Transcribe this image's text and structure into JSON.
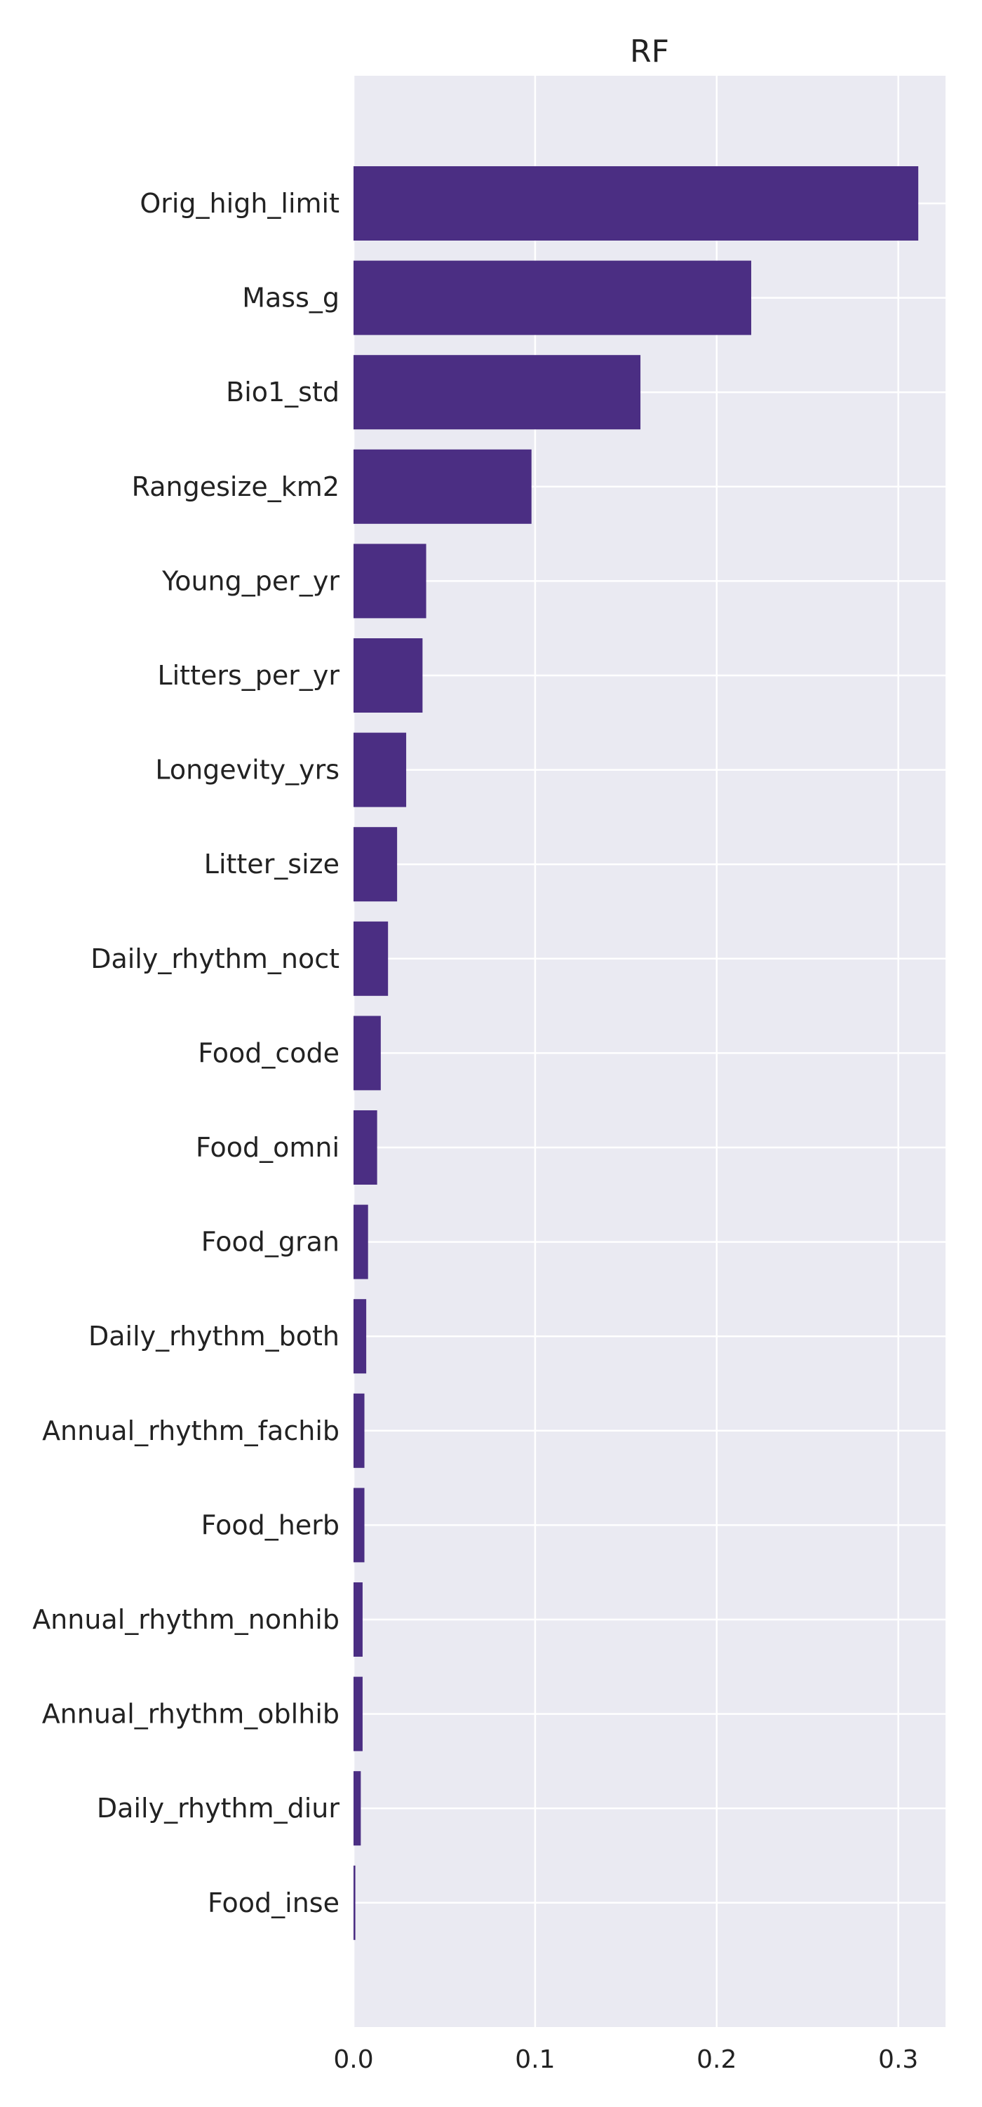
{
  "chart_data": {
    "type": "bar",
    "orientation": "horizontal",
    "title": "RF",
    "xlabel": "",
    "ylabel": "",
    "categories": [
      "Orig_high_limit",
      "Mass_g",
      "Bio1_std",
      "Rangesize_km2",
      "Young_per_yr",
      "Litters_per_yr",
      "Longevity_yrs",
      "Litter_size",
      "Daily_rhythm_noct",
      "Food_code",
      "Food_omni",
      "Food_gran",
      "Daily_rhythm_both",
      "Annual_rhythm_fachib",
      "Food_herb",
      "Annual_rhythm_nonhib",
      "Annual_rhythm_oblhib",
      "Daily_rhythm_diur",
      "Food_inse"
    ],
    "values": [
      0.311,
      0.219,
      0.158,
      0.098,
      0.04,
      0.038,
      0.029,
      0.024,
      0.019,
      0.015,
      0.013,
      0.008,
      0.007,
      0.006,
      0.006,
      0.005,
      0.005,
      0.004,
      0.001
    ],
    "xlim": [
      0,
      0.326
    ],
    "xticks": [
      {
        "value": 0.0,
        "label": "0.0"
      },
      {
        "value": 0.1,
        "label": "0.1"
      },
      {
        "value": 0.2,
        "label": "0.2"
      },
      {
        "value": 0.3,
        "label": "0.3"
      }
    ],
    "grid": true,
    "legend": "none",
    "colors": {
      "bar": "#4b2e83",
      "plot_background": "#eaeaf2",
      "grid": "#ffffff",
      "text": "#222222"
    }
  }
}
